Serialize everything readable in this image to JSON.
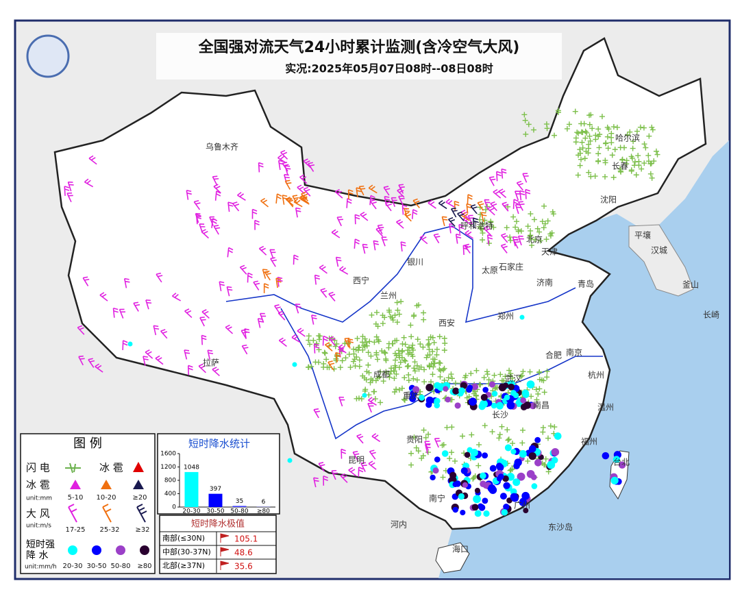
{
  "header": {
    "title": "全国强对流天气24小时累计监测(含冷空气大风)",
    "subtitle": "实况:2025年05月07日08时--08日08时"
  },
  "map_labels": [
    "乌鲁木齐",
    "呼和浩特",
    "哈尔滨",
    "长春",
    "沈阳",
    "平壤",
    "汉城",
    "釜山",
    "长崎",
    "北京",
    "天津",
    "石家庄",
    "太原",
    "银川",
    "西宁",
    "兰州",
    "济南",
    "青岛",
    "郑州",
    "西安",
    "合肥",
    "南京",
    "拉萨",
    "成都",
    "重庆",
    "武汉",
    "长沙",
    "南昌",
    "杭州",
    "温州",
    "福州",
    "贵阳",
    "昆明",
    "南宁",
    "广州",
    "河内",
    "东沙岛",
    "海口",
    "台北"
  ],
  "legend": {
    "title": "图 例",
    "lightning": "闪 电",
    "hail_single": "冰 雹",
    "hail": {
      "label": "冰 雹",
      "unit": "unit:mm",
      "classes": [
        "5-10",
        "10-20",
        "≥20"
      ]
    },
    "wind": {
      "label": "大 风",
      "unit": "unit:m/s",
      "classes": [
        "17-25",
        "25-32",
        "≥32"
      ]
    },
    "rain": {
      "label_1": "短时强",
      "label_2": "降 水",
      "unit": "unit:mm/h",
      "classes": [
        "20-30",
        "30-50",
        "50-80",
        "≥80"
      ]
    }
  },
  "stats_chart": {
    "type": "bar",
    "title": "短时降水统计",
    "categories": [
      "20-30",
      "30-50",
      "50-80",
      "≥80"
    ],
    "values": [
      1048,
      397,
      35,
      6
    ],
    "colors": [
      "#00ffff",
      "#0000ff",
      "#4a4aff",
      "#4a4aff"
    ],
    "ylim": [
      0,
      1600
    ],
    "yticks": [
      0,
      400,
      800,
      1200,
      1600
    ]
  },
  "extremes": {
    "title": "短时降水极值",
    "rows": [
      [
        "南部(≤30N)",
        105.1
      ],
      [
        "中部(30-37N)",
        48.6
      ],
      [
        "北部(≥37N)",
        35.6
      ]
    ]
  }
}
